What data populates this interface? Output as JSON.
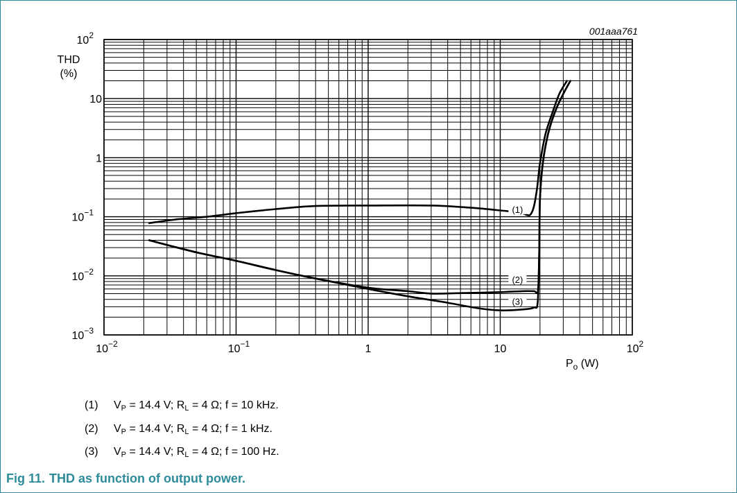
{
  "chart_data": {
    "type": "line",
    "figure_id": "001aaa761",
    "xlabel": "P",
    "xlabel_sub": "o",
    "xunit": "(W)",
    "ylabel_line1": "THD",
    "ylabel_line2": "(%)",
    "xscale": "log",
    "yscale": "log",
    "xlim": [
      0.01,
      100
    ],
    "ylim": [
      0.001,
      100
    ],
    "grid": true,
    "x_ticks": [
      {
        "value": 0.01,
        "base": "10",
        "exp": "−2"
      },
      {
        "value": 0.1,
        "base": "10",
        "exp": "−1"
      },
      {
        "value": 1,
        "base": "1",
        "exp": ""
      },
      {
        "value": 10,
        "base": "10",
        "exp": ""
      },
      {
        "value": 100,
        "base": "10",
        "exp": "2"
      }
    ],
    "y_ticks": [
      {
        "value": 0.001,
        "base": "10",
        "exp": "−3"
      },
      {
        "value": 0.01,
        "base": "10",
        "exp": "−2"
      },
      {
        "value": 0.1,
        "base": "10",
        "exp": "−1"
      },
      {
        "value": 1,
        "base": "1",
        "exp": ""
      },
      {
        "value": 10,
        "base": "10",
        "exp": ""
      },
      {
        "value": 100,
        "base": "10",
        "exp": "2"
      }
    ],
    "series": [
      {
        "name": "(1)",
        "x": [
          0.022,
          0.035,
          0.06,
          0.1,
          0.2,
          0.4,
          1,
          3,
          6,
          10,
          14,
          16,
          17,
          18,
          19,
          20,
          22,
          25,
          28,
          32
        ],
        "y": [
          0.078,
          0.09,
          0.1,
          0.115,
          0.135,
          0.152,
          0.155,
          0.155,
          0.142,
          0.128,
          0.118,
          0.107,
          0.11,
          0.15,
          0.3,
          0.8,
          2.5,
          6,
          12,
          20
        ]
      },
      {
        "name": "(2)",
        "x": [
          0.022,
          0.05,
          0.1,
          0.2,
          0.4,
          1,
          2,
          3,
          5,
          10,
          15,
          18,
          19.3,
          19.7,
          20,
          21,
          23,
          26,
          30,
          34
        ],
        "y": [
          0.04,
          0.025,
          0.018,
          0.0125,
          0.009,
          0.0063,
          0.0055,
          0.005,
          0.0051,
          0.0053,
          0.0055,
          0.0055,
          0.0056,
          0.02,
          0.2,
          0.8,
          2.5,
          6,
          12,
          20
        ]
      },
      {
        "name": "(3)",
        "x": [
          0.022,
          0.05,
          0.1,
          0.2,
          0.4,
          1,
          2,
          4,
          7,
          10,
          15,
          18,
          19.2,
          19.7,
          20,
          21,
          23,
          26,
          30,
          34
        ],
        "y": [
          0.04,
          0.025,
          0.018,
          0.0125,
          0.009,
          0.006,
          0.0045,
          0.0035,
          0.0028,
          0.0026,
          0.0027,
          0.0029,
          0.0035,
          0.02,
          0.2,
          0.8,
          2.5,
          6,
          12,
          20
        ]
      }
    ],
    "annotations": [
      {
        "text": "(1)",
        "x": 17,
        "y": 0.13
      },
      {
        "text": "(2)",
        "x": 17,
        "y": 0.0085
      },
      {
        "text": "(3)",
        "x": 17,
        "y": 0.0036
      }
    ]
  },
  "legend": [
    {
      "num": "(1)",
      "vp_sym": "V",
      "vp_sub": "P",
      "vp_val": " = 14.4 V; ",
      "rl_sym": "R",
      "rl_sub": "L",
      "rest": " = 4 Ω; f = 10 kHz."
    },
    {
      "num": "(2)",
      "vp_sym": "V",
      "vp_sub": "P",
      "vp_val": " = 14.4 V; ",
      "rl_sym": "R",
      "rl_sub": "L",
      "rest": " = 4 Ω; f = 1 kHz."
    },
    {
      "num": "(3)",
      "vp_sym": "V",
      "vp_sub": "P",
      "vp_val": " = 14.4 V; ",
      "rl_sym": "R",
      "rl_sub": "L",
      "rest": " = 4 Ω; f = 100 Hz."
    }
  ],
  "caption": {
    "label": "Fig 11.",
    "text": "THD as function of output power."
  }
}
